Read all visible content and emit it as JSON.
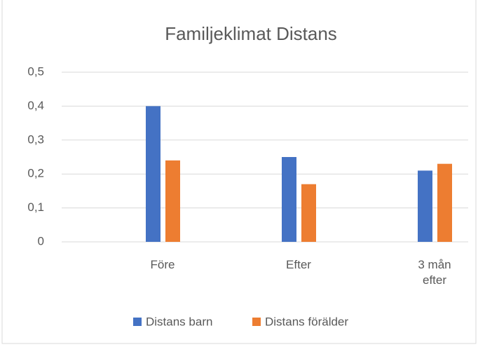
{
  "chart_data": {
    "type": "bar",
    "title": "Familjeklimat Distans",
    "categories": [
      "Före",
      "Efter",
      "3 mån efter"
    ],
    "series": [
      {
        "name": "Distans barn",
        "color": "#4472c4",
        "values": [
          0.4,
          0.25,
          0.21
        ]
      },
      {
        "name": "Distans förälder",
        "color": "#ed7d31",
        "values": [
          0.24,
          0.17,
          0.23
        ]
      }
    ],
    "ylim": [
      0,
      0.5
    ],
    "yticks": [
      0,
      {
        "value": 0.1,
        "label": "0,1"
      },
      {
        "value": 0.2,
        "label": "0,2"
      },
      {
        "value": 0.3,
        "label": "0,3"
      },
      {
        "value": 0.4,
        "label": "0,4"
      },
      {
        "value": 0.5,
        "label": "0,5"
      }
    ],
    "grid": true,
    "legend": "bottom"
  }
}
